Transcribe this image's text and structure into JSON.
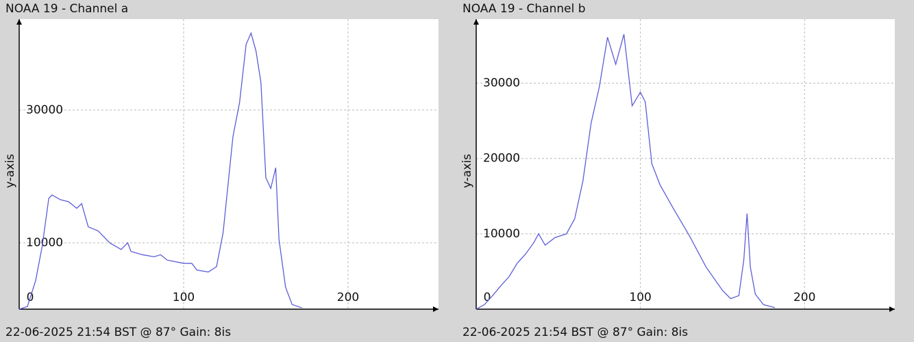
{
  "chart_data": [
    {
      "type": "line",
      "title": "NOAA 19 - Channel a",
      "ylabel": "y-axis",
      "footer": "22-06-2025 21:54 BST @ 87° Gain: 8is",
      "xlim": [
        0,
        255
      ],
      "ylim": [
        0,
        43700
      ],
      "xticks": [
        0,
        100,
        200
      ],
      "yticks": [
        10000,
        30000
      ],
      "grid": true,
      "series": [
        {
          "color": "#5c5cd8",
          "x": [
            0,
            5,
            10,
            14,
            18,
            20,
            25,
            30,
            35,
            38,
            42,
            48,
            55,
            62,
            66,
            68,
            75,
            82,
            86,
            90,
            100,
            105,
            108,
            115,
            120,
            124,
            130,
            134,
            138,
            141,
            144,
            147,
            150,
            153,
            156,
            158,
            162,
            166,
            172
          ],
          "values": [
            0,
            400,
            4300,
            9500,
            16700,
            17200,
            16500,
            16200,
            15200,
            15900,
            12400,
            11800,
            10000,
            9000,
            10000,
            8700,
            8200,
            7900,
            8200,
            7400,
            6900,
            6900,
            5900,
            5600,
            6400,
            11500,
            26000,
            31100,
            39900,
            41600,
            38900,
            34200,
            19800,
            18200,
            21300,
            10500,
            3300,
            700,
            200
          ]
        }
      ]
    },
    {
      "type": "line",
      "title": "NOAA 19 - Channel b",
      "ylabel": "y-axis",
      "footer": "22-06-2025 21:54 BST @ 87° Gain: 8is",
      "xlim": [
        0,
        255
      ],
      "ylim": [
        0,
        38500
      ],
      "xticks": [
        0,
        100,
        200
      ],
      "yticks": [
        10000,
        20000,
        30000
      ],
      "grid": true,
      "series": [
        {
          "color": "#5c5cd8",
          "x": [
            0,
            5,
            10,
            15,
            20,
            25,
            30,
            35,
            38,
            42,
            48,
            55,
            60,
            65,
            70,
            75,
            80,
            85,
            90,
            95,
            100,
            103,
            107,
            112,
            120,
            130,
            140,
            150,
            155,
            160,
            163,
            165,
            167,
            170,
            175,
            182
          ],
          "values": [
            0,
            600,
            1800,
            3100,
            4300,
            6100,
            7300,
            8800,
            10000,
            8500,
            9500,
            10000,
            12000,
            17000,
            24700,
            29500,
            36100,
            32500,
            36500,
            27000,
            28800,
            27500,
            19300,
            16500,
            13400,
            9700,
            5600,
            2500,
            1400,
            1800,
            6500,
            12700,
            5600,
            2000,
            600,
            200
          ]
        }
      ]
    }
  ]
}
